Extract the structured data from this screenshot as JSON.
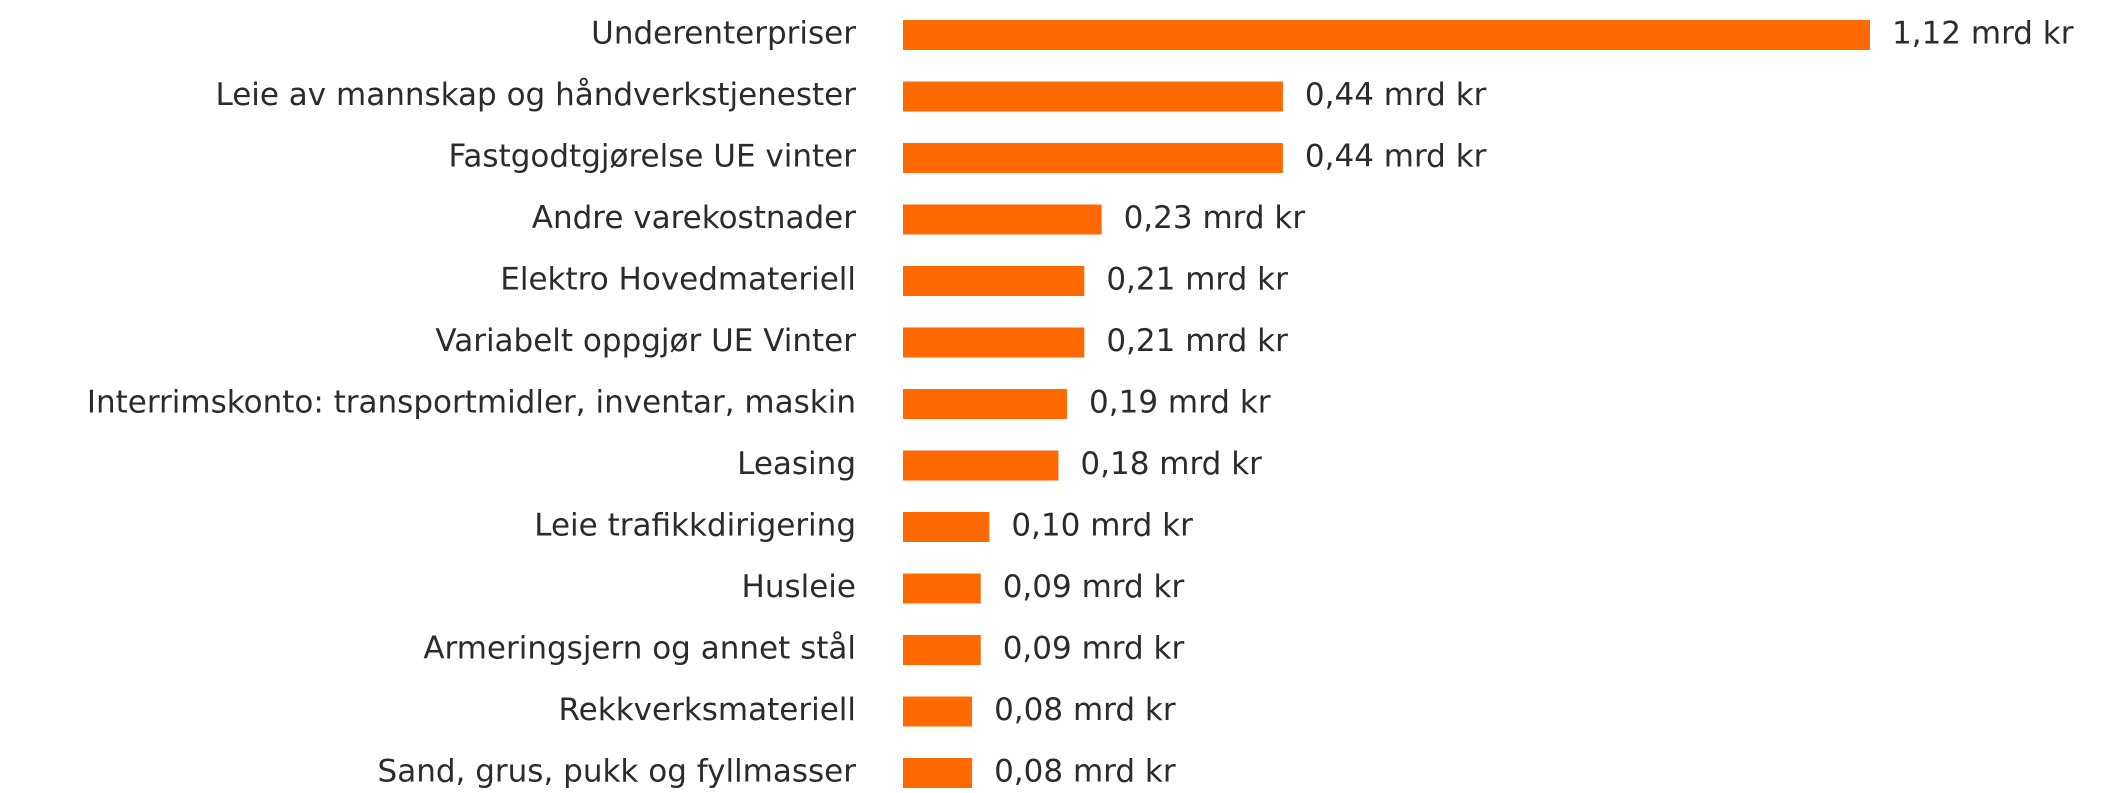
{
  "chart_data": {
    "type": "hbar",
    "color": "#ff6900",
    "categories": [
      "Underenterpriser",
      "Leie av mannskap og håndverkstjenester",
      "Fastgodtgjørelse UE vinter",
      "Andre varekostnader",
      "Elektro Hovedmateriell",
      "Variabelt oppgjør UE Vinter",
      "Interrimskonto: transportmidler, inventar, maskin",
      "Leasing",
      "Leie trafikkdirigering",
      "Husleie",
      "Armeringsjern og annet stål",
      "Rekkverksmateriell",
      "Sand, grus, pukk og fyllmasser"
    ],
    "values": [
      1.12,
      0.44,
      0.44,
      0.23,
      0.21,
      0.21,
      0.19,
      0.18,
      0.1,
      0.09,
      0.09,
      0.08,
      0.08
    ],
    "value_labels": [
      "1,12 mrd kr",
      "0,44 mrd kr",
      "0,44 mrd kr",
      "0,23 mrd kr",
      "0,21 mrd kr",
      "0,21 mrd kr",
      "0,19 mrd kr",
      "0,18 mrd kr",
      "0,10 mrd kr",
      "0,09 mrd kr",
      "0,09 mrd kr",
      "0,08 mrd kr",
      "0,08 mrd kr"
    ]
  }
}
